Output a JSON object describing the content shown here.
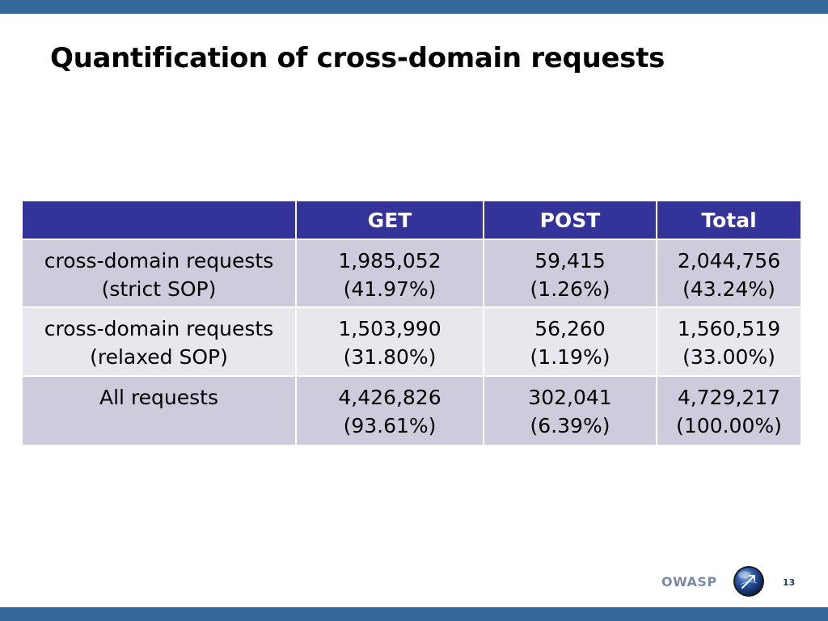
{
  "slide": {
    "title": "Quantification of cross-domain requests",
    "page_number": "13",
    "logo_text": "OWASP",
    "colors": {
      "bar": "#336699",
      "header_fill": "#333399",
      "row_dark": "#ccccdd",
      "row_light": "#e7e7ee"
    }
  },
  "table": {
    "headers": [
      "",
      "GET",
      "POST",
      "Total"
    ],
    "rows": [
      [
        [
          "cross-domain requests",
          "(strict SOP)"
        ],
        [
          "1,985,052",
          "(41.97%)"
        ],
        [
          "59,415",
          "(1.26%)"
        ],
        [
          "2,044,756",
          "(43.24%)"
        ]
      ],
      [
        [
          "cross-domain requests",
          "(relaxed SOP)"
        ],
        [
          "1,503,990",
          "(31.80%)"
        ],
        [
          "56,260",
          "(1.19%)"
        ],
        [
          "1,560,519",
          "(33.00%)"
        ]
      ],
      [
        [
          "All requests"
        ],
        [
          "4,426,826",
          "(93.61%)"
        ],
        [
          "302,041",
          "(6.39%)"
        ],
        [
          "4,729,217",
          "(100.00%)"
        ]
      ]
    ]
  }
}
